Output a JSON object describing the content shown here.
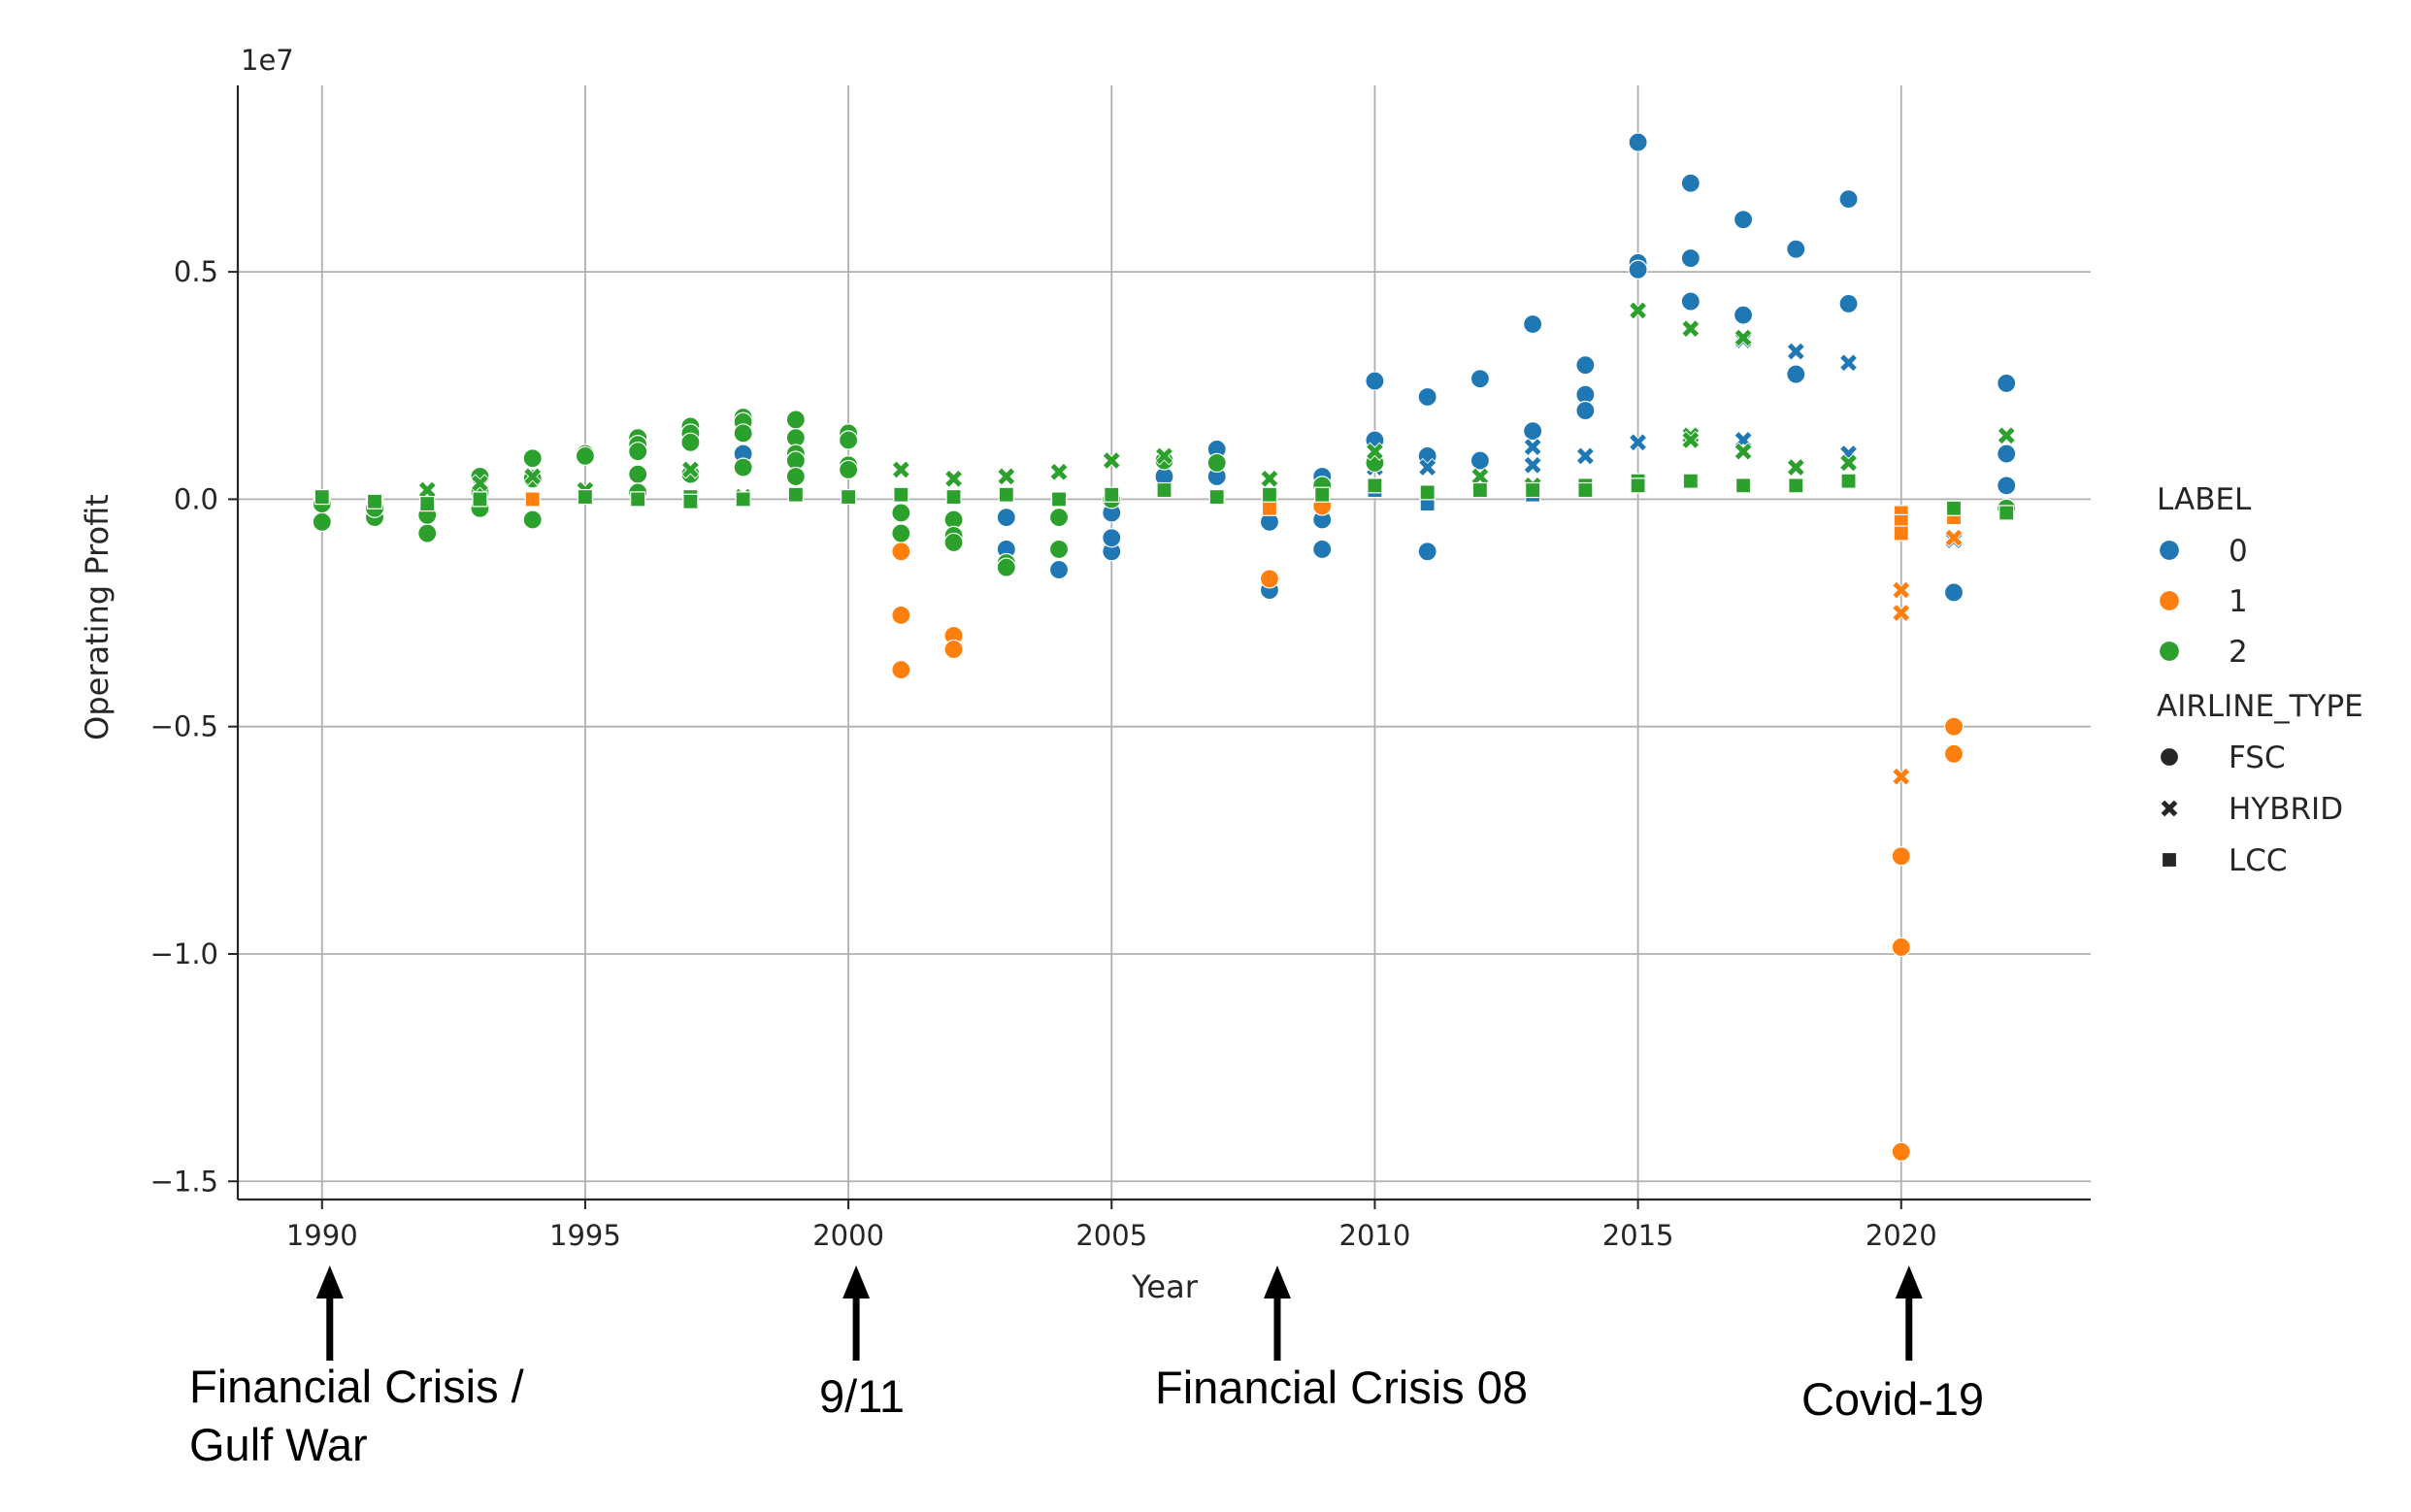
{
  "chart_data": {
    "type": "scatter",
    "xlabel": "Year",
    "ylabel": "Operating Profit",
    "y_scale_label": "1e7",
    "xlim": [
      1988.4,
      2023.6
    ],
    "ylim": [
      -15.4,
      9.1
    ],
    "y_multiplier": 1000000.0,
    "x_ticks": [
      1990,
      1995,
      2000,
      2005,
      2010,
      2015,
      2020
    ],
    "x_tick_labels": [
      "1990",
      "1995",
      "2000",
      "2005",
      "2010",
      "2015",
      "2020"
    ],
    "y_ticks": [
      -15,
      -10,
      -5,
      0,
      5
    ],
    "y_tick_labels": [
      "−1.5",
      "−1.0",
      "−0.5",
      "0.0",
      "0.5"
    ],
    "grid": true,
    "legend_position": "right",
    "hue_legend_title": "LABEL",
    "style_legend_title": "AIRLINE_TYPE",
    "hue_levels": [
      {
        "label": "0",
        "color": "#1f77b4"
      },
      {
        "label": "1",
        "color": "#ff7f0e"
      },
      {
        "label": "2",
        "color": "#2ca02c"
      }
    ],
    "style_levels": [
      {
        "label": "FSC",
        "marker": "circle"
      },
      {
        "label": "HYBRID",
        "marker": "x"
      },
      {
        "label": "LCC",
        "marker": "square"
      }
    ],
    "series": [
      {
        "label": "0",
        "type": "FSC",
        "points": [
          [
            1998,
            1.0
          ],
          [
            2003,
            -1.1
          ],
          [
            2003,
            -0.4
          ],
          [
            2004,
            -1.55
          ],
          [
            2005,
            -1.15
          ],
          [
            2005,
            -0.85
          ],
          [
            2005,
            -0.3
          ],
          [
            2006,
            0.5
          ],
          [
            2007,
            1.1
          ],
          [
            2007,
            0.5
          ],
          [
            2008,
            -2.0
          ],
          [
            2008,
            -0.5
          ],
          [
            2009,
            0.5
          ],
          [
            2009,
            -0.45
          ],
          [
            2009,
            -1.1
          ],
          [
            2010,
            2.6
          ],
          [
            2010,
            1.3
          ],
          [
            2011,
            2.25
          ],
          [
            2011,
            0.95
          ],
          [
            2011,
            -1.15
          ],
          [
            2012,
            2.65
          ],
          [
            2012,
            0.85
          ],
          [
            2013,
            3.85
          ],
          [
            2013,
            1.5
          ],
          [
            2014,
            2.95
          ],
          [
            2014,
            2.3
          ],
          [
            2014,
            1.95
          ],
          [
            2015,
            7.85
          ],
          [
            2015,
            5.2
          ],
          [
            2015,
            5.05
          ],
          [
            2016,
            6.95
          ],
          [
            2016,
            5.3
          ],
          [
            2016,
            4.35
          ],
          [
            2017,
            6.15
          ],
          [
            2017,
            4.05
          ],
          [
            2018,
            5.5
          ],
          [
            2018,
            2.75
          ],
          [
            2019,
            6.6
          ],
          [
            2019,
            4.3
          ],
          [
            2021,
            -2.05
          ],
          [
            2022,
            2.55
          ],
          [
            2022,
            1.0
          ],
          [
            2022,
            0.3
          ]
        ]
      },
      {
        "label": "0",
        "type": "HYBRID",
        "points": [
          [
            2010,
            0.7
          ],
          [
            2011,
            0.7
          ],
          [
            2013,
            1.15
          ],
          [
            2013,
            0.75
          ],
          [
            2014,
            0.95
          ],
          [
            2015,
            1.25
          ],
          [
            2017,
            1.3
          ],
          [
            2017,
            3.5
          ],
          [
            2018,
            3.25
          ],
          [
            2019,
            3.0
          ],
          [
            2019,
            1.0
          ],
          [
            2021,
            -0.9
          ]
        ]
      },
      {
        "label": "0",
        "type": "LCC",
        "points": [
          [
            2010,
            0.2
          ],
          [
            2011,
            0.0
          ],
          [
            2011,
            -0.1
          ],
          [
            2013,
            0.1
          ]
        ]
      },
      {
        "label": "1",
        "type": "FSC",
        "points": [
          [
            1990,
            -0.1
          ],
          [
            2001,
            -1.15
          ],
          [
            2001,
            -2.55
          ],
          [
            2001,
            -3.75
          ],
          [
            2002,
            -0.9
          ],
          [
            2002,
            -3.0
          ],
          [
            2002,
            -3.3
          ],
          [
            2008,
            -1.75
          ],
          [
            2009,
            -0.15
          ],
          [
            2020,
            -7.85
          ],
          [
            2020,
            -9.85
          ],
          [
            2020,
            -14.35
          ],
          [
            2021,
            -5.0
          ],
          [
            2021,
            -5.6
          ]
        ]
      },
      {
        "label": "1",
        "type": "HYBRID",
        "points": [
          [
            1991,
            -0.1
          ],
          [
            1992,
            -0.05
          ],
          [
            2020,
            -2.0
          ],
          [
            2020,
            -2.5
          ],
          [
            2020,
            -6.1
          ],
          [
            2021,
            -0.85
          ]
        ]
      },
      {
        "label": "1",
        "type": "LCC",
        "points": [
          [
            1994,
            0.0
          ],
          [
            2008,
            -0.2
          ],
          [
            2020,
            -0.3
          ],
          [
            2020,
            -0.5
          ],
          [
            2020,
            -0.75
          ],
          [
            2021,
            -0.4
          ]
        ]
      },
      {
        "label": "2",
        "type": "FSC",
        "points": [
          [
            1990,
            -0.5
          ],
          [
            1990,
            -0.1
          ],
          [
            1991,
            -0.4
          ],
          [
            1991,
            -0.2
          ],
          [
            1992,
            -0.75
          ],
          [
            1992,
            -0.35
          ],
          [
            1993,
            0.5
          ],
          [
            1993,
            0.15
          ],
          [
            1993,
            -0.2
          ],
          [
            1994,
            0.9
          ],
          [
            1994,
            0.45
          ],
          [
            1994,
            -0.45
          ],
          [
            1995,
            1.0
          ],
          [
            1995,
            0.95
          ],
          [
            1996,
            1.35
          ],
          [
            1996,
            1.2
          ],
          [
            1996,
            1.05
          ],
          [
            1996,
            0.55
          ],
          [
            1996,
            0.15
          ],
          [
            1997,
            1.6
          ],
          [
            1997,
            1.45
          ],
          [
            1997,
            1.25
          ],
          [
            1997,
            0.55
          ],
          [
            1998,
            1.8
          ],
          [
            1998,
            1.7
          ],
          [
            1998,
            1.45
          ],
          [
            1998,
            0.7
          ],
          [
            1999,
            1.75
          ],
          [
            1999,
            1.35
          ],
          [
            1999,
            1.0
          ],
          [
            1999,
            0.85
          ],
          [
            1999,
            0.5
          ],
          [
            2000,
            1.45
          ],
          [
            2000,
            1.3
          ],
          [
            2000,
            0.75
          ],
          [
            2000,
            0.65
          ],
          [
            2001,
            -0.3
          ],
          [
            2001,
            -0.75
          ],
          [
            2002,
            -0.45
          ],
          [
            2002,
            -0.8
          ],
          [
            2002,
            -0.95
          ],
          [
            2003,
            -1.4
          ],
          [
            2003,
            -1.5
          ],
          [
            2004,
            -0.4
          ],
          [
            2004,
            -1.1
          ],
          [
            2005,
            0.0
          ],
          [
            2006,
            0.85
          ],
          [
            2007,
            0.8
          ],
          [
            2009,
            0.3
          ],
          [
            2010,
            0.8
          ],
          [
            2022,
            -0.2
          ]
        ]
      },
      {
        "label": "2",
        "type": "HYBRID",
        "points": [
          [
            1992,
            0.2
          ],
          [
            1993,
            0.35
          ],
          [
            1994,
            0.5
          ],
          [
            1995,
            0.2
          ],
          [
            1997,
            0.65
          ],
          [
            1998,
            0.05
          ],
          [
            2001,
            0.65
          ],
          [
            2002,
            0.45
          ],
          [
            2003,
            0.5
          ],
          [
            2004,
            0.6
          ],
          [
            2005,
            0.85
          ],
          [
            2006,
            0.95
          ],
          [
            2008,
            0.45
          ],
          [
            2010,
            1.05
          ],
          [
            2012,
            0.5
          ],
          [
            2013,
            0.3
          ],
          [
            2015,
            4.15
          ],
          [
            2016,
            3.75
          ],
          [
            2016,
            1.4
          ],
          [
            2016,
            1.3
          ],
          [
            2017,
            3.55
          ],
          [
            2017,
            1.05
          ],
          [
            2018,
            0.7
          ],
          [
            2019,
            0.8
          ],
          [
            2022,
            1.4
          ]
        ]
      },
      {
        "label": "2",
        "type": "LCC",
        "points": [
          [
            1990,
            0.05
          ],
          [
            1991,
            -0.05
          ],
          [
            1992,
            -0.1
          ],
          [
            1993,
            0.0
          ],
          [
            1995,
            0.05
          ],
          [
            1996,
            0.0
          ],
          [
            1997,
            0.05
          ],
          [
            1997,
            -0.05
          ],
          [
            1998,
            0.0
          ],
          [
            1999,
            0.1
          ],
          [
            2000,
            0.05
          ],
          [
            2001,
            0.1
          ],
          [
            2002,
            0.05
          ],
          [
            2003,
            0.1
          ],
          [
            2004,
            0.0
          ],
          [
            2005,
            0.1
          ],
          [
            2006,
            0.2
          ],
          [
            2007,
            0.05
          ],
          [
            2008,
            0.1
          ],
          [
            2009,
            0.1
          ],
          [
            2010,
            0.3
          ],
          [
            2011,
            0.15
          ],
          [
            2012,
            0.2
          ],
          [
            2013,
            0.2
          ],
          [
            2014,
            0.3
          ],
          [
            2014,
            0.2
          ],
          [
            2015,
            0.4
          ],
          [
            2015,
            0.3
          ],
          [
            2016,
            0.4
          ],
          [
            2017,
            0.3
          ],
          [
            2018,
            0.3
          ],
          [
            2019,
            0.4
          ],
          [
            2021,
            -0.2
          ],
          [
            2022,
            -0.3
          ]
        ]
      }
    ]
  },
  "annotations": [
    {
      "year": 1990,
      "lines": [
        "Financial Crisis /",
        "Gulf War"
      ]
    },
    {
      "year": 2000,
      "lines": [
        "9/11"
      ]
    },
    {
      "year": 2008,
      "lines": [
        "Financial Crisis 08"
      ]
    },
    {
      "year": 2020,
      "lines": [
        "Covid-19"
      ]
    }
  ]
}
